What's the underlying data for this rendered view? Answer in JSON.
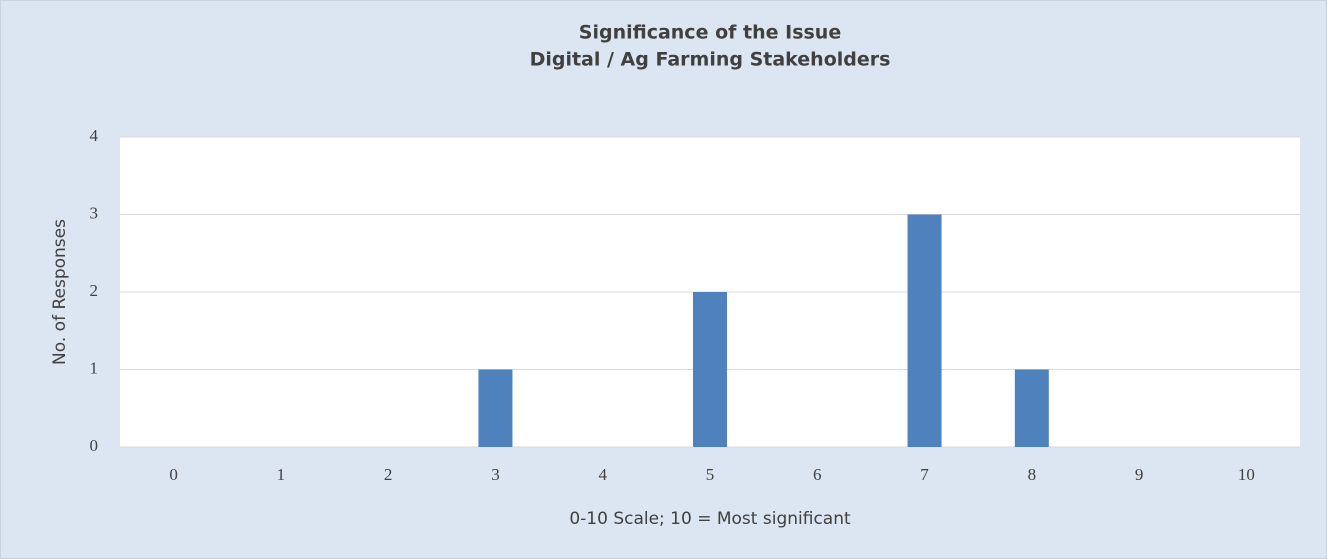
{
  "chart_data": {
    "type": "bar",
    "title": "Significance of the Issue",
    "subtitle": "Digital / Ag Farming Stakeholders",
    "x_label": "0-10 Scale; 10 = Most significant",
    "y_label": "No. of Responses",
    "categories": [
      "0",
      "1",
      "2",
      "3",
      "4",
      "5",
      "6",
      "7",
      "8",
      "9",
      "10"
    ],
    "values": [
      0,
      0,
      0,
      1,
      0,
      2,
      0,
      3,
      1,
      0,
      0
    ],
    "color": "#4f81bd",
    "ylim": [
      0,
      4
    ],
    "yticks": [
      0,
      1,
      2,
      3,
      4
    ],
    "grid": true
  }
}
